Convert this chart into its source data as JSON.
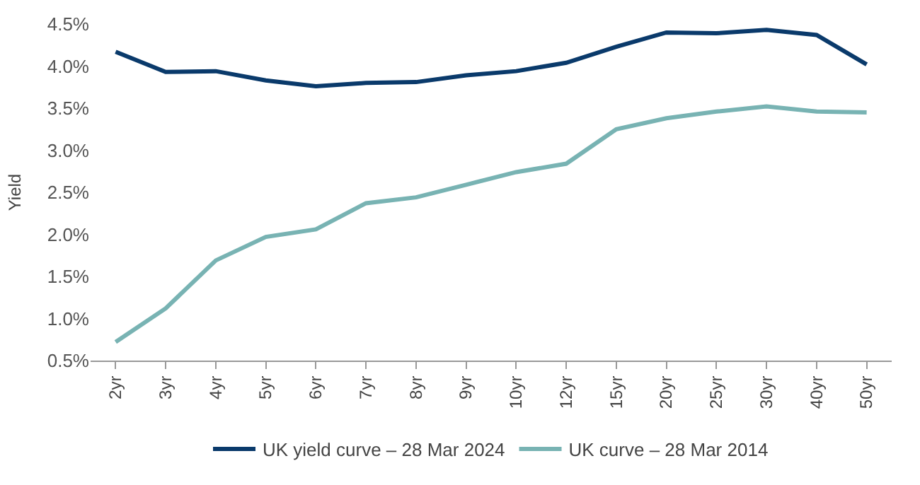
{
  "chart_data": {
    "type": "line",
    "ylabel": "Yield",
    "categories": [
      "2yr",
      "3yr",
      "4yr",
      "5yr",
      "6yr",
      "7yr",
      "8yr",
      "9yr",
      "10yr",
      "12yr",
      "15yr",
      "20yr",
      "25yr",
      "30yr",
      "40yr",
      "50yr"
    ],
    "series": [
      {
        "name": "UK yield curve – 28 Mar 2024",
        "color": "#0a3a6b",
        "values": [
          4.17,
          3.93,
          3.94,
          3.83,
          3.76,
          3.8,
          3.81,
          3.89,
          3.94,
          4.04,
          4.23,
          4.4,
          4.39,
          4.43,
          4.37,
          4.02
        ]
      },
      {
        "name": "UK curve – 28 Mar 2014",
        "color": "#78b3b3",
        "values": [
          0.72,
          1.12,
          1.69,
          1.97,
          2.06,
          2.37,
          2.44,
          2.59,
          2.74,
          2.84,
          3.25,
          3.38,
          3.46,
          3.52,
          3.46,
          3.45
        ]
      }
    ],
    "ylim": [
      0.5,
      4.5
    ],
    "yticks": [
      {
        "value": 0.5,
        "label": "0.5%"
      },
      {
        "value": 1.0,
        "label": "1.0%"
      },
      {
        "value": 1.5,
        "label": "1.5%"
      },
      {
        "value": 2.0,
        "label": "2.0%"
      },
      {
        "value": 2.5,
        "label": "2.5%"
      },
      {
        "value": 3.0,
        "label": "3.0%"
      },
      {
        "value": 3.5,
        "label": "3.5%"
      },
      {
        "value": 4.0,
        "label": "4.0%"
      },
      {
        "value": 4.5,
        "label": "4.5%"
      }
    ],
    "grid": false,
    "legend": "bottom",
    "marker": "none",
    "line_style": "solid"
  }
}
